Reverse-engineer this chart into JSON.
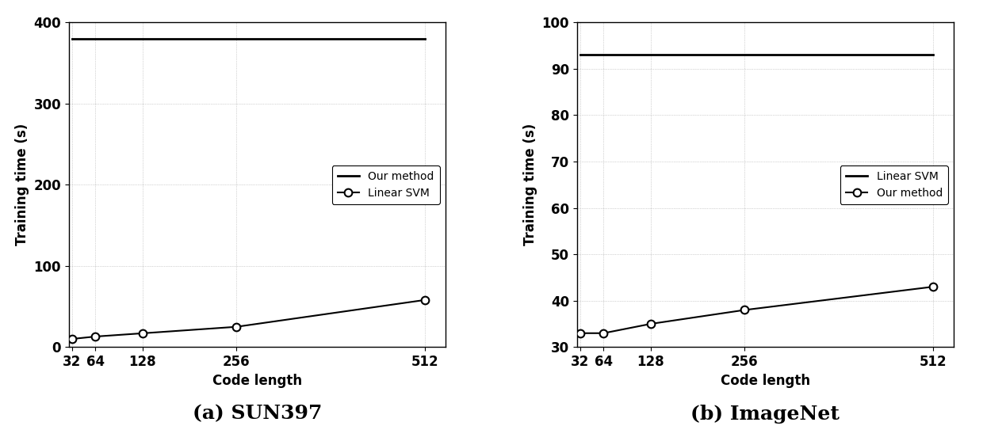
{
  "code_lengths": [
    32,
    64,
    128,
    256,
    512
  ],
  "sun397": {
    "our_method_constant": 380,
    "linear_svm_y": [
      10,
      13,
      17,
      25,
      58
    ],
    "ylim": [
      0,
      400
    ],
    "yticks": [
      0,
      100,
      200,
      300,
      400
    ],
    "ylabel": "Training time (s)",
    "xlabel": "Code length",
    "caption": "(a) SUN397",
    "legend_our": "Our method",
    "legend_svm": "Linear SVM"
  },
  "imagenet": {
    "linear_svm_constant": 93,
    "our_method_y": [
      33,
      33,
      35,
      38,
      43
    ],
    "ylim": [
      30,
      100
    ],
    "yticks": [
      30,
      40,
      50,
      60,
      70,
      80,
      90,
      100
    ],
    "ylabel": "Training time (s)",
    "xlabel": "Code length",
    "caption": "(b) ImageNet",
    "legend_svm": "Linear SVM",
    "legend_our": "Our method"
  },
  "bg_color": "#ffffff",
  "line_color": "#000000",
  "grid_color": "#888888",
  "xtick_labels": [
    "32",
    "64",
    "128",
    "256",
    "512"
  ]
}
